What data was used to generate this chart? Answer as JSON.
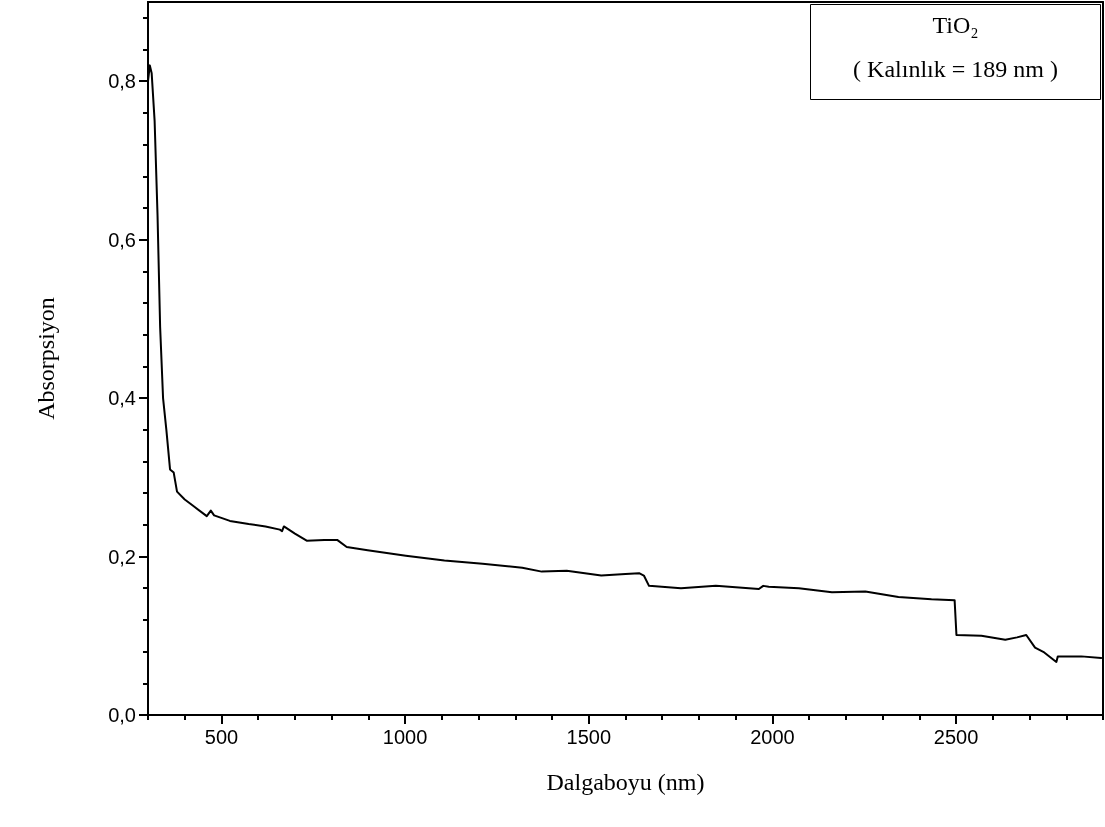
{
  "chart_data": {
    "type": "line",
    "xlabel": "Dalgaboyu (nm)",
    "ylabel": "Absorpsiyon",
    "annotations": [
      "TiO₂",
      "( Kalınlık = 189 nm )"
    ],
    "x": [
      300,
      305,
      310,
      318,
      326,
      333,
      341,
      350,
      360,
      370,
      379,
      400,
      420,
      460,
      471,
      480,
      523,
      574,
      620,
      659,
      665,
      670,
      700,
      732,
      780,
      815,
      841,
      898,
      1002,
      1107,
      1211,
      1319,
      1372,
      1440,
      1534,
      1600,
      1637,
      1650,
      1664,
      1751,
      1846,
      1963,
      1975,
      1990,
      2072,
      2162,
      2253,
      2343,
      2433,
      2496,
      2501,
      2569,
      2634,
      2666,
      2691,
      2715,
      2740,
      2773,
      2777,
      2841,
      2895
    ],
    "series": [
      {
        "color": "#000000",
        "values": [
          0.8,
          0.82,
          0.81,
          0.75,
          0.63,
          0.49,
          0.4,
          0.36,
          0.31,
          0.306,
          0.282,
          0.272,
          0.265,
          0.251,
          0.258,
          0.252,
          0.245,
          0.241,
          0.238,
          0.234,
          0.232,
          0.238,
          0.229,
          0.22,
          0.221,
          0.221,
          0.212,
          0.208,
          0.201,
          0.195,
          0.191,
          0.186,
          0.181,
          0.182,
          0.176,
          0.178,
          0.179,
          0.176,
          0.163,
          0.16,
          0.163,
          0.159,
          0.163,
          0.162,
          0.16,
          0.155,
          0.156,
          0.149,
          0.146,
          0.145,
          0.101,
          0.1,
          0.095,
          0.098,
          0.101,
          0.085,
          0.079,
          0.067,
          0.074,
          0.074,
          0.072
        ]
      }
    ],
    "xlim": [
      300,
      2900
    ],
    "xticks": [
      {
        "value": 300,
        "label": null
      },
      {
        "value": 400,
        "label": null
      },
      500,
      {
        "value": 600,
        "label": null
      },
      {
        "value": 700,
        "label": null
      },
      {
        "value": 800,
        "label": null
      },
      {
        "value": 900,
        "label": null
      },
      1000,
      {
        "value": 1100,
        "label": null
      },
      {
        "value": 1200,
        "label": null
      },
      {
        "value": 1300,
        "label": null
      },
      {
        "value": 1400,
        "label": null
      },
      1500,
      {
        "value": 1600,
        "label": null
      },
      {
        "value": 1700,
        "label": null
      },
      {
        "value": 1800,
        "label": null
      },
      {
        "value": 1900,
        "label": null
      },
      2000,
      {
        "value": 2100,
        "label": null
      },
      {
        "value": 2200,
        "label": null
      },
      {
        "value": 2300,
        "label": null
      },
      {
        "value": 2400,
        "label": null
      },
      2500,
      {
        "value": 2600,
        "label": null
      },
      {
        "value": 2700,
        "label": null
      },
      {
        "value": 2800,
        "label": null
      },
      {
        "value": 2900,
        "label": null
      }
    ],
    "ylim": [
      0,
      0.9
    ],
    "yticks": [
      {
        "value": 0,
        "label": "0,0"
      },
      {
        "value": 0.04,
        "label": null
      },
      {
        "value": 0.08,
        "label": null
      },
      {
        "value": 0.12,
        "label": null
      },
      {
        "value": 0.16,
        "label": null
      },
      {
        "value": 0.2,
        "label": "0,2"
      },
      {
        "value": 0.24,
        "label": null
      },
      {
        "value": 0.28,
        "label": null
      },
      {
        "value": 0.32,
        "label": null
      },
      {
        "value": 0.36,
        "label": null
      },
      {
        "value": 0.4,
        "label": "0,4"
      },
      {
        "value": 0.44,
        "label": null
      },
      {
        "value": 0.48,
        "label": null
      },
      {
        "value": 0.52,
        "label": null
      },
      {
        "value": 0.56,
        "label": null
      },
      {
        "value": 0.6,
        "label": "0,6"
      },
      {
        "value": 0.64,
        "label": null
      },
      {
        "value": 0.68,
        "label": null
      },
      {
        "value": 0.72,
        "label": null
      },
      {
        "value": 0.76,
        "label": null
      },
      {
        "value": 0.8,
        "label": "0,8"
      },
      {
        "value": 0.84,
        "label": null
      },
      {
        "value": 0.88,
        "label": null
      }
    ],
    "grid": false,
    "marker": "none",
    "line_style": "solid"
  }
}
